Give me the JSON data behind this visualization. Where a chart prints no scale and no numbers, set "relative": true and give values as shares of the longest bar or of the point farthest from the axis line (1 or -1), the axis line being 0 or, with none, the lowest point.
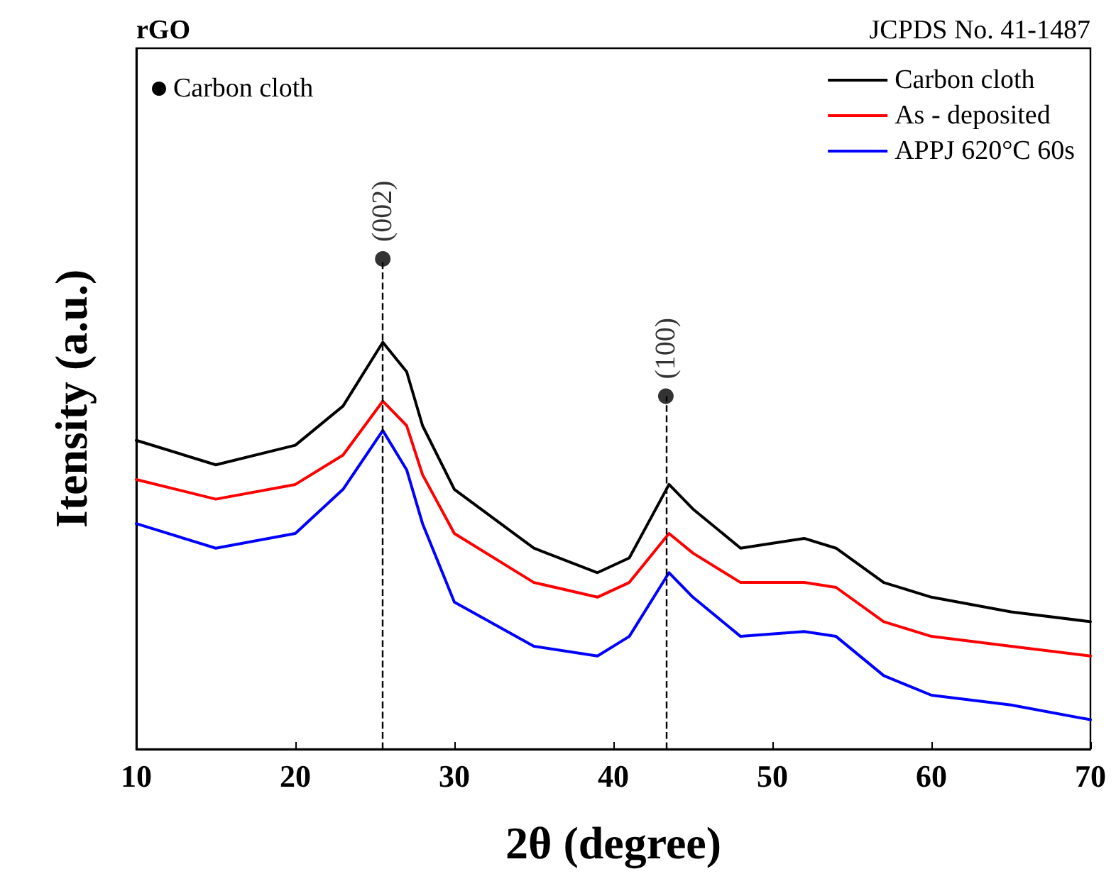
{
  "chart_data": {
    "type": "line",
    "xlabel": "2θ (degree)",
    "ylabel": "Itensity (a.u.)",
    "relative": true,
    "annotations": [
      "rGO",
      "JCPDS No. 41-1487",
      {
        "text": "(002)",
        "x": 25.5,
        "y": 1.0
      },
      {
        "text": "(100)",
        "x": 43.3,
        "y": 0.72
      }
    ],
    "x": [
      10,
      15,
      20,
      23,
      25.5,
      27,
      28,
      30,
      35,
      39,
      41,
      43.5,
      45,
      48,
      52,
      54,
      57,
      60,
      65,
      70
    ],
    "xlim": [
      10,
      70
    ],
    "xticks": [
      10,
      20,
      30,
      40,
      50,
      60,
      70
    ],
    "grid": false,
    "legend": "top right",
    "marker": "none",
    "line_style": "solid",
    "series": [
      {
        "name": "Carbon cloth",
        "color": "#000000",
        "values": [
          0.63,
          0.58,
          0.62,
          0.7,
          0.83,
          0.77,
          0.66,
          0.53,
          0.41,
          0.36,
          0.39,
          0.54,
          0.49,
          0.41,
          0.43,
          0.41,
          0.34,
          0.31,
          0.28,
          0.26
        ]
      },
      {
        "name": "As - deposited",
        "color": "#ff0000",
        "values": [
          0.55,
          0.51,
          0.54,
          0.6,
          0.71,
          0.66,
          0.56,
          0.44,
          0.34,
          0.31,
          0.34,
          0.44,
          0.4,
          0.34,
          0.34,
          0.33,
          0.26,
          0.23,
          0.21,
          0.19
        ]
      },
      {
        "name": "APPJ 620°C 60s",
        "color": "#0000ff",
        "values": [
          0.46,
          0.41,
          0.44,
          0.53,
          0.65,
          0.57,
          0.46,
          0.3,
          0.21,
          0.19,
          0.23,
          0.36,
          0.31,
          0.23,
          0.24,
          0.23,
          0.15,
          0.11,
          0.09,
          0.06
        ]
      },
      {
        "name": "Carbon cloth",
        "type": "scatter",
        "marker": "circle",
        "color": "#000000",
        "x": [
          25.5,
          43.3
        ],
        "values": [
          1.0,
          0.72
        ]
      }
    ],
    "ref_lines": [
      {
        "axis": "x",
        "value": 25.5,
        "line_style": "dashed",
        "color": "#000000"
      },
      {
        "axis": "x",
        "value": 43.3,
        "line_style": "dashed",
        "color": "#000000"
      }
    ]
  }
}
